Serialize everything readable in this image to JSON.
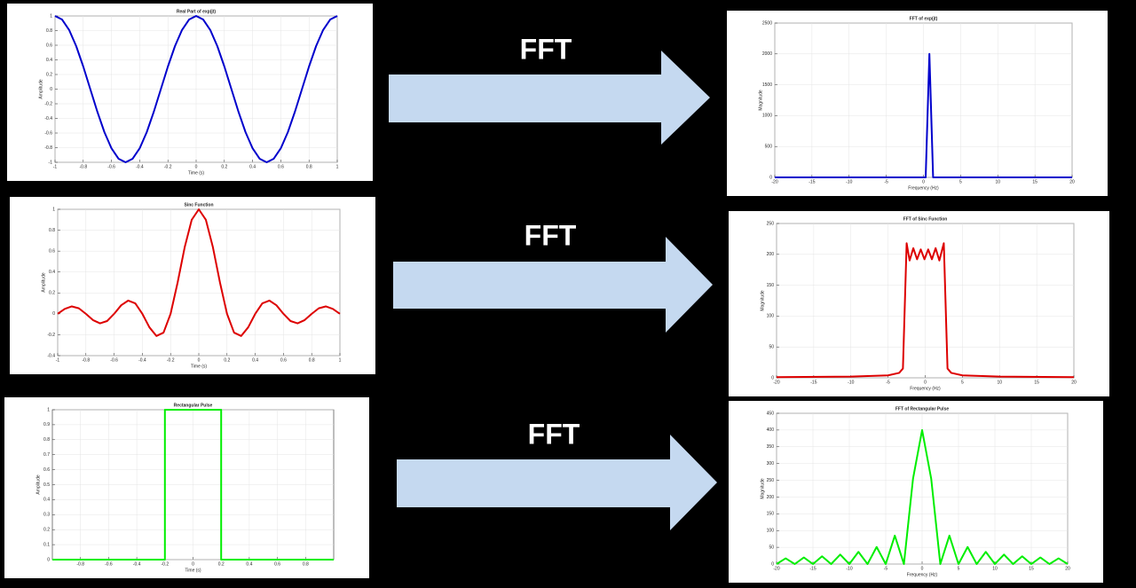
{
  "chart_data": [
    {
      "type": "line",
      "title": "Real Part of exp(jt)",
      "xlabel": "Time (s)",
      "ylabel": "Amplitude",
      "color": "#0000cc",
      "grid": true,
      "xlim": [
        -1,
        1
      ],
      "ylim": [
        -1,
        1
      ],
      "xticks": [
        -1,
        -0.8,
        -0.6,
        -0.4,
        -0.2,
        0,
        0.2,
        0.4,
        0.6,
        0.8,
        1
      ],
      "yticks": [
        -1,
        -0.8,
        -0.6,
        -0.4,
        -0.2,
        0,
        0.2,
        0.4,
        0.6,
        0.8,
        1
      ],
      "x": [
        -1,
        -0.95,
        -0.9,
        -0.85,
        -0.8,
        -0.75,
        -0.7,
        -0.65,
        -0.6,
        -0.55,
        -0.5,
        -0.45,
        -0.4,
        -0.35,
        -0.3,
        -0.25,
        -0.2,
        -0.15,
        -0.1,
        -0.05,
        0,
        0.05,
        0.1,
        0.15,
        0.2,
        0.25,
        0.3,
        0.35,
        0.4,
        0.45,
        0.5,
        0.55,
        0.6,
        0.65,
        0.7,
        0.75,
        0.8,
        0.85,
        0.9,
        0.95,
        1
      ],
      "values": [
        1,
        0.951,
        0.809,
        0.588,
        0.309,
        0,
        -0.309,
        -0.588,
        -0.809,
        -0.951,
        -1,
        -0.951,
        -0.809,
        -0.588,
        -0.309,
        0,
        0.309,
        0.588,
        0.809,
        0.951,
        1,
        0.951,
        0.809,
        0.588,
        0.309,
        0,
        -0.309,
        -0.588,
        -0.809,
        -0.951,
        -1,
        -0.951,
        -0.809,
        -0.588,
        -0.309,
        0,
        0.309,
        0.588,
        0.809,
        0.951,
        1
      ]
    },
    {
      "type": "line",
      "title": "FFT of exp(jt)",
      "xlabel": "Frequency (Hz)",
      "ylabel": "Magnitude",
      "color": "#0000cc",
      "grid": true,
      "xlim": [
        -20,
        20
      ],
      "ylim": [
        0,
        2500
      ],
      "xticks": [
        -20,
        -15,
        -10,
        -5,
        0,
        5,
        10,
        15,
        20
      ],
      "yticks": [
        0,
        500,
        1000,
        1500,
        2000,
        2500
      ],
      "x": [
        -20,
        0.3,
        0.8,
        1.3,
        20
      ],
      "values": [
        0,
        0,
        2000,
        0,
        0
      ]
    },
    {
      "type": "line",
      "title": "Sinc Function",
      "xlabel": "Time (s)",
      "ylabel": "Amplitude",
      "color": "#dd0000",
      "grid": true,
      "xlim": [
        -1,
        1
      ],
      "ylim": [
        -0.4,
        1
      ],
      "xticks": [
        -1,
        -0.8,
        -0.6,
        -0.4,
        -0.2,
        0,
        0.2,
        0.4,
        0.6,
        0.8,
        1
      ],
      "yticks": [
        -0.4,
        -0.2,
        0,
        0.2,
        0.4,
        0.6,
        0.8,
        1
      ],
      "x": [
        -1,
        -0.95,
        -0.9,
        -0.85,
        -0.8,
        -0.75,
        -0.7,
        -0.65,
        -0.6,
        -0.55,
        -0.5,
        -0.45,
        -0.4,
        -0.35,
        -0.3,
        -0.25,
        -0.2,
        -0.15,
        -0.1,
        -0.05,
        0,
        0.05,
        0.1,
        0.15,
        0.2,
        0.25,
        0.3,
        0.35,
        0.4,
        0.45,
        0.5,
        0.55,
        0.6,
        0.65,
        0.7,
        0.75,
        0.8,
        0.85,
        0.9,
        0.95,
        1
      ],
      "values": [
        0,
        0.047,
        0.071,
        0.053,
        0,
        -0.06,
        -0.091,
        -0.069,
        0,
        0.082,
        0.127,
        0.1,
        0,
        -0.129,
        -0.212,
        -0.18,
        0,
        0.3,
        0.637,
        0.9,
        1,
        0.9,
        0.637,
        0.3,
        0,
        -0.18,
        -0.212,
        -0.129,
        0,
        0.1,
        0.127,
        0.082,
        0,
        -0.069,
        -0.091,
        -0.06,
        0,
        0.053,
        0.071,
        0.047,
        0
      ]
    },
    {
      "type": "line",
      "title": "FFT of Sinc Function",
      "xlabel": "Frequency (Hz)",
      "ylabel": "Magnitude",
      "color": "#dd0000",
      "grid": true,
      "xlim": [
        -20,
        20
      ],
      "ylim": [
        0,
        250
      ],
      "xticks": [
        -20,
        -15,
        -10,
        -5,
        0,
        5,
        10,
        15,
        20
      ],
      "yticks": [
        0,
        50,
        100,
        150,
        200,
        250
      ],
      "x": [
        -20,
        -10,
        -5,
        -3.5,
        -3,
        -2.5,
        -2.1,
        -1.6,
        -1.1,
        -0.6,
        -0.1,
        0.4,
        0.9,
        1.4,
        1.9,
        2.5,
        3,
        3.5,
        5,
        10,
        20
      ],
      "values": [
        1,
        2,
        4,
        8,
        15,
        218,
        190,
        210,
        192,
        208,
        192,
        208,
        192,
        210,
        190,
        218,
        15,
        8,
        4,
        2,
        1
      ]
    },
    {
      "type": "line",
      "title": "Rectangular Pulse",
      "xlabel": "Time (s)",
      "ylabel": "Amplitude",
      "color": "#00ee00",
      "grid": true,
      "xlim": [
        -1,
        1
      ],
      "ylim": [
        0,
        1
      ],
      "xticks": [
        -0.8,
        -0.6,
        -0.4,
        -0.2,
        0,
        0.2,
        0.4,
        0.6,
        0.8
      ],
      "yticks": [
        0,
        0.1,
        0.2,
        0.3,
        0.4,
        0.5,
        0.6,
        0.7,
        0.8,
        0.9,
        1
      ],
      "x": [
        -1,
        -0.2,
        -0.2,
        0.2,
        0.2,
        1
      ],
      "values": [
        0,
        0,
        1,
        1,
        0,
        0
      ]
    },
    {
      "type": "line",
      "title": "FFT of Rectangular Pulse",
      "xlabel": "Frequency (Hz)",
      "ylabel": "Magnitude",
      "color": "#00ee00",
      "grid": true,
      "xlim": [
        -20,
        20
      ],
      "ylim": [
        0,
        450
      ],
      "xticks": [
        -20,
        -15,
        -10,
        -5,
        0,
        5,
        10,
        15,
        20
      ],
      "yticks": [
        0,
        50,
        100,
        150,
        200,
        250,
        300,
        350,
        400,
        450
      ],
      "x": [
        -20,
        -18.75,
        -17.5,
        -16.25,
        -15,
        -13.75,
        -12.5,
        -11.25,
        -10,
        -8.75,
        -7.5,
        -6.25,
        -5,
        -3.75,
        -2.5,
        -1.25,
        0,
        1.25,
        2.5,
        3.75,
        5,
        6.25,
        7.5,
        8.75,
        10,
        11.25,
        12.5,
        13.75,
        15,
        16.25,
        17.5,
        18.75,
        20
      ],
      "values": [
        0,
        17,
        0,
        19.6,
        0,
        23.1,
        0,
        28.3,
        0,
        36.4,
        0,
        50.9,
        0,
        84.9,
        0,
        254.6,
        400,
        254.6,
        0,
        84.9,
        0,
        50.9,
        0,
        36.4,
        0,
        28.3,
        0,
        23.1,
        0,
        19.6,
        0,
        17,
        0
      ]
    }
  ],
  "arrow_labels": [
    "FFT",
    "FFT",
    "FFT"
  ]
}
